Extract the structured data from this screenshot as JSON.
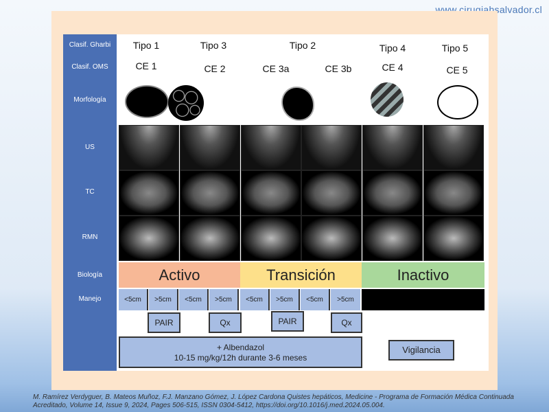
{
  "website": "www.cirugiahsalvador.cl",
  "row_labels": {
    "gharbi": "Clasif. Gharbi",
    "oms": "Clasif. OMS",
    "morfologia": "Morfología",
    "us": "US",
    "tc": "TC",
    "rmn": "RMN",
    "biologia": "Biología",
    "manejo": "Manejo"
  },
  "gharbi": [
    "Tipo 1",
    "Tipo 3",
    "Tipo 2",
    "Tipo 4",
    "Tipo 5"
  ],
  "oms": [
    "CE 1",
    "CE 2",
    "CE 3a",
    "CE 3b",
    "CE 4",
    "CE 5"
  ],
  "biologia": {
    "activo": "Activo",
    "transicion": "Transición",
    "inactivo": "Inactivo",
    "colors": {
      "activo": "#f7b896",
      "transicion": "#fde08a",
      "inactivo": "#a9d89b"
    }
  },
  "manejo": [
    "<5cm",
    ">5cm",
    "<5cm",
    ">5cm",
    "<5cm",
    ">5cm",
    "<5cm",
    ">5cm"
  ],
  "treatments": {
    "pair1": "PAIR",
    "qx1": "Qx",
    "pair2": "PAIR",
    "qx2": "Qx",
    "albendazol_1": "+ Albendazol",
    "albendazol_2": "10-15 mg/kg/12h durante 3-6 meses",
    "vigilancia": "Vigilancia"
  },
  "citation": {
    "line1": "M. Ramírez Verdyguer, B. Mateos Muñoz, F.J. Manzano Gómez, J. López Cardona Quistes hepáticos, Medicine - Programa de Formación Médica Continuada",
    "line2": "Acreditado, Volume 14, Issue 9, 2024, Pages 506-515, ISSN 0304-5412, https://doi.org/10.1016/j.med.2024.05.004."
  }
}
